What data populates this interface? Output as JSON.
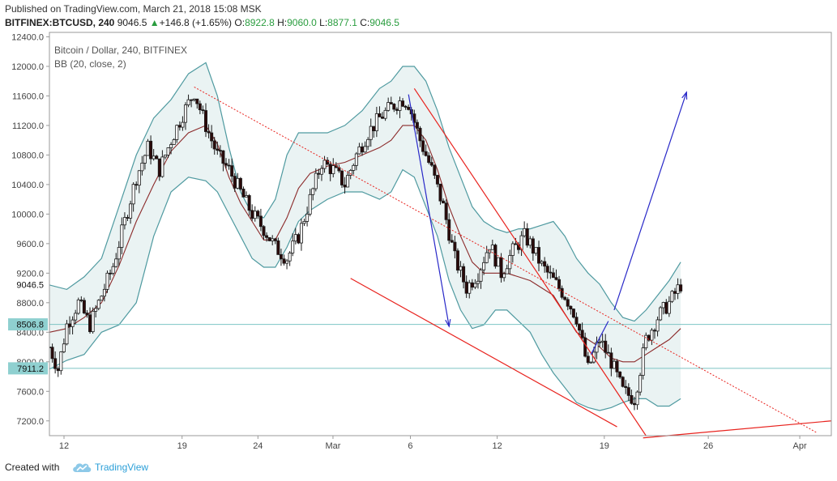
{
  "header": {
    "published": "Published on TradingView.com, March 21, 2018 15:08 MSK",
    "symbol": "BITFINEX:BTCUSD, 240",
    "last": "9046.5",
    "change": "+146.8 (+1.65%)",
    "open_label": "O:",
    "open": "8922.8",
    "high_label": "H:",
    "high": "9060.0",
    "low_label": "L:",
    "low": "8877.1",
    "close_label": "C:",
    "close": "9046.5",
    "up_arrow": "▲"
  },
  "legend": {
    "title": "Bitcoin / Dollar, 240, BITFINEX",
    "indicator": "BB (20, close, 2)"
  },
  "footer": {
    "created_with": "Created with",
    "brand": "TradingView",
    "logo_icon": "tradingview-cloud-icon"
  },
  "colors": {
    "candle_up": "#ffffff",
    "candle_down": "#2b0a0a",
    "band": "#4f9aa0",
    "band_fill": "#eaf3f3",
    "basis": "#8b2a2a",
    "red_line": "#e8231e",
    "blue_line": "#2828c8",
    "hline": "#7cc4c4",
    "axis_text": "#444444"
  },
  "chart_data": {
    "type": "candlestick",
    "title": "Bitcoin / Dollar, 240, BITFINEX",
    "y_ticks": [
      "7200.0",
      "7600.0",
      "8000.0",
      "8400.0",
      "8800.0",
      "9200.0",
      "9600.0",
      "10000.0",
      "10400.0",
      "10800.0",
      "11200.0",
      "11600.0",
      "12000.0",
      "12400.0"
    ],
    "x_ticks": [
      "12",
      "19",
      "24",
      "Mar",
      "6",
      "12",
      "19",
      "26",
      "Apr"
    ],
    "ylim": [
      7000,
      12460
    ],
    "price_labels": [
      {
        "text": "9046.5",
        "value": 9046.5,
        "style": "current"
      },
      {
        "text": "8506.8",
        "value": 8506.8,
        "style": "hline"
      },
      {
        "text": "7911.2",
        "value": 7911.2,
        "style": "hline"
      }
    ],
    "horizontal_lines": [
      8506.8,
      7911.2
    ],
    "price_path": [
      [
        0,
        8200
      ],
      [
        3,
        7900
      ],
      [
        6,
        8500
      ],
      [
        10,
        8800
      ],
      [
        14,
        8500
      ],
      [
        18,
        8900
      ],
      [
        22,
        9300
      ],
      [
        26,
        9900
      ],
      [
        30,
        10500
      ],
      [
        34,
        10900
      ],
      [
        38,
        10600
      ],
      [
        42,
        11000
      ],
      [
        46,
        11350
      ],
      [
        50,
        11650
      ],
      [
        54,
        11200
      ],
      [
        58,
        10800
      ],
      [
        62,
        10600
      ],
      [
        66,
        10300
      ],
      [
        70,
        10000
      ],
      [
        74,
        9800
      ],
      [
        78,
        9550
      ],
      [
        82,
        9400
      ],
      [
        86,
        9700
      ],
      [
        90,
        10200
      ],
      [
        94,
        10700
      ],
      [
        98,
        10600
      ],
      [
        102,
        10400
      ],
      [
        106,
        10800
      ],
      [
        110,
        11100
      ],
      [
        114,
        11300
      ],
      [
        118,
        11450
      ],
      [
        122,
        11550
      ],
      [
        124,
        11500
      ],
      [
        128,
        11000
      ],
      [
        132,
        10600
      ],
      [
        136,
        10100
      ],
      [
        140,
        9400
      ],
      [
        144,
        9000
      ],
      [
        148,
        9200
      ],
      [
        152,
        9600
      ],
      [
        156,
        9200
      ],
      [
        160,
        9500
      ],
      [
        164,
        9700
      ],
      [
        166,
        9600
      ],
      [
        170,
        9300
      ],
      [
        174,
        9100
      ],
      [
        178,
        8900
      ],
      [
        182,
        8600
      ],
      [
        186,
        7900
      ],
      [
        190,
        8300
      ],
      [
        194,
        8000
      ],
      [
        198,
        7600
      ],
      [
        202,
        7500
      ],
      [
        206,
        8300
      ],
      [
        210,
        8600
      ],
      [
        214,
        8800
      ],
      [
        218,
        9046
      ]
    ],
    "bollinger": {
      "period": 20,
      "stddev": 2,
      "upper": [
        [
          0,
          9040
        ],
        [
          6,
          8980
        ],
        [
          12,
          9150
        ],
        [
          18,
          9400
        ],
        [
          24,
          10100
        ],
        [
          30,
          10800
        ],
        [
          36,
          11300
        ],
        [
          42,
          11550
        ],
        [
          48,
          11900
        ],
        [
          54,
          12050
        ],
        [
          58,
          11600
        ],
        [
          62,
          10900
        ],
        [
          66,
          10300
        ],
        [
          70,
          10000
        ],
        [
          74,
          9950
        ],
        [
          78,
          10200
        ],
        [
          82,
          10800
        ],
        [
          86,
          11100
        ],
        [
          90,
          11100
        ],
        [
          96,
          11100
        ],
        [
          102,
          11200
        ],
        [
          108,
          11400
        ],
        [
          114,
          11700
        ],
        [
          118,
          11800
        ],
        [
          122,
          12000
        ],
        [
          126,
          12000
        ],
        [
          130,
          11800
        ],
        [
          134,
          11400
        ],
        [
          138,
          10900
        ],
        [
          142,
          10500
        ],
        [
          146,
          10100
        ],
        [
          150,
          9900
        ],
        [
          154,
          9800
        ],
        [
          158,
          9750
        ],
        [
          162,
          9800
        ],
        [
          166,
          9800
        ],
        [
          170,
          9850
        ],
        [
          174,
          9900
        ],
        [
          178,
          9700
        ],
        [
          182,
          9400
        ],
        [
          186,
          9200
        ],
        [
          190,
          9050
        ],
        [
          194,
          8800
        ],
        [
          198,
          8600
        ],
        [
          202,
          8550
        ],
        [
          206,
          8700
        ],
        [
          210,
          8900
        ],
        [
          214,
          9100
        ],
        [
          218,
          9350
        ]
      ],
      "lower": [
        [
          0,
          7900
        ],
        [
          6,
          8020
        ],
        [
          12,
          8100
        ],
        [
          18,
          8400
        ],
        [
          24,
          8500
        ],
        [
          30,
          8800
        ],
        [
          36,
          9700
        ],
        [
          42,
          10300
        ],
        [
          48,
          10500
        ],
        [
          54,
          10450
        ],
        [
          58,
          10300
        ],
        [
          62,
          10000
        ],
        [
          66,
          9700
        ],
        [
          70,
          9400
        ],
        [
          74,
          9280
        ],
        [
          78,
          9280
        ],
        [
          82,
          9550
        ],
        [
          86,
          9900
        ],
        [
          90,
          10050
        ],
        [
          96,
          10200
        ],
        [
          102,
          10300
        ],
        [
          108,
          10300
        ],
        [
          114,
          10200
        ],
        [
          118,
          10300
        ],
        [
          122,
          10600
        ],
        [
          126,
          10500
        ],
        [
          130,
          10100
        ],
        [
          134,
          9700
        ],
        [
          138,
          9100
        ],
        [
          142,
          8700
        ],
        [
          146,
          8450
        ],
        [
          150,
          8500
        ],
        [
          154,
          8700
        ],
        [
          158,
          8700
        ],
        [
          162,
          8550
        ],
        [
          166,
          8400
        ],
        [
          170,
          8100
        ],
        [
          174,
          7850
        ],
        [
          178,
          7650
        ],
        [
          182,
          7450
        ],
        [
          186,
          7380
        ],
        [
          190,
          7340
        ],
        [
          194,
          7380
        ],
        [
          198,
          7450
        ],
        [
          202,
          7500
        ],
        [
          206,
          7500
        ],
        [
          210,
          7400
        ],
        [
          214,
          7400
        ],
        [
          218,
          7500
        ]
      ],
      "basis": [
        [
          0,
          8400
        ],
        [
          6,
          8450
        ],
        [
          12,
          8600
        ],
        [
          18,
          8800
        ],
        [
          24,
          9300
        ],
        [
          30,
          9900
        ],
        [
          36,
          10400
        ],
        [
          42,
          10850
        ],
        [
          48,
          11100
        ],
        [
          54,
          11200
        ],
        [
          58,
          10950
        ],
        [
          62,
          10500
        ],
        [
          66,
          10150
        ],
        [
          70,
          9900
        ],
        [
          74,
          9650
        ],
        [
          78,
          9650
        ],
        [
          82,
          9950
        ],
        [
          86,
          10350
        ],
        [
          90,
          10550
        ],
        [
          96,
          10650
        ],
        [
          102,
          10700
        ],
        [
          108,
          10800
        ],
        [
          114,
          10900
        ],
        [
          118,
          11000
        ],
        [
          122,
          11200
        ],
        [
          126,
          11200
        ],
        [
          130,
          11000
        ],
        [
          134,
          10600
        ],
        [
          138,
          10100
        ],
        [
          142,
          9700
        ],
        [
          146,
          9350
        ],
        [
          150,
          9200
        ],
        [
          154,
          9200
        ],
        [
          158,
          9200
        ],
        [
          162,
          9150
        ],
        [
          166,
          9100
        ],
        [
          170,
          9000
        ],
        [
          174,
          8900
        ],
        [
          178,
          8650
        ],
        [
          182,
          8400
        ],
        [
          186,
          8300
        ],
        [
          190,
          8200
        ],
        [
          194,
          8050
        ],
        [
          198,
          8000
        ],
        [
          202,
          8000
        ],
        [
          206,
          8100
        ],
        [
          210,
          8200
        ],
        [
          214,
          8300
        ],
        [
          218,
          8450
        ]
      ]
    },
    "drawings": [
      {
        "kind": "dotted",
        "color": "red",
        "from": [
          50,
          11720
        ],
        "to": [
          265,
          7040
        ]
      },
      {
        "kind": "solid",
        "color": "red",
        "from": [
          126,
          11700
        ],
        "to": [
          206,
          7000
        ]
      },
      {
        "kind": "solid",
        "color": "red",
        "from": [
          104,
          9130
        ],
        "to": [
          196,
          7120
        ]
      },
      {
        "kind": "solid",
        "color": "red",
        "from": [
          205,
          6970
        ],
        "to": [
          270,
          7200
        ]
      },
      {
        "kind": "arrow",
        "color": "blue",
        "from": [
          124,
          11620
        ],
        "to": [
          138,
          8480
        ]
      },
      {
        "kind": "solid",
        "color": "blue",
        "from": [
          187,
          8100
        ],
        "to": [
          193,
          8550
        ]
      },
      {
        "kind": "arrow",
        "color": "blue",
        "from": [
          195,
          8700
        ],
        "to": [
          220,
          11650
        ]
      }
    ],
    "grid": false
  }
}
